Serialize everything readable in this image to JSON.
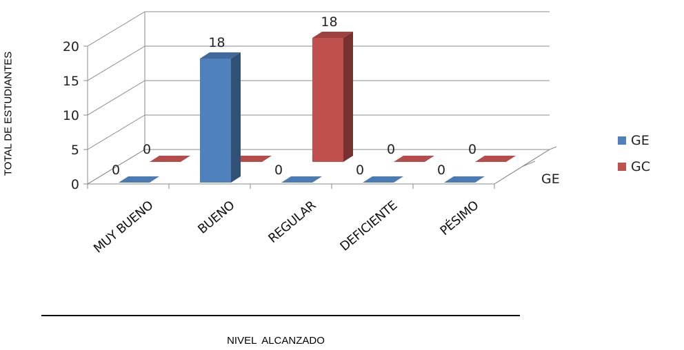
{
  "chart_data": {
    "type": "bar",
    "categories": [
      "MUY BUENO",
      "BUENO",
      "REGULAR",
      "DEFICIENTE",
      "PÉSIMO"
    ],
    "series": [
      {
        "name": "GE",
        "values": [
          0,
          18,
          0,
          0,
          0
        ],
        "color": "#4F81BD"
      },
      {
        "name": "GC",
        "values": [
          0,
          0,
          18,
          0,
          0
        ],
        "color": "#C0504D"
      }
    ],
    "ylim": [
      0,
      20
    ],
    "yticks": [
      "0",
      "5",
      "10",
      "15",
      "20"
    ],
    "depth_axis_label": "GE",
    "ylabel": "TOTAL DE  ESTUDIANTES",
    "xlabel": "NIVEL    ALCANZADO",
    "legend_position": "right",
    "grid": true
  }
}
